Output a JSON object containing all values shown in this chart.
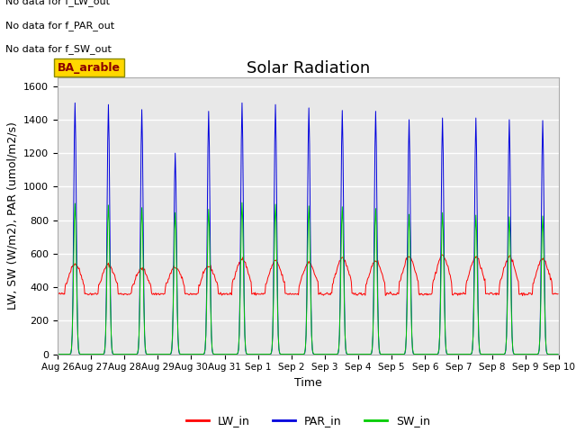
{
  "title": "Solar Radiation",
  "xlabel": "Time",
  "ylabel": "LW, SW (W/m2), PAR (umol/m2/s)",
  "ylim": [
    0,
    1650
  ],
  "yticks": [
    0,
    200,
    400,
    600,
    800,
    1000,
    1200,
    1400,
    1600
  ],
  "n_days": 15,
  "par_day_peaks": [
    1500,
    1490,
    1460,
    1200,
    1450,
    1500,
    1490,
    1470,
    1455,
    1450,
    1400,
    1410,
    1410,
    1400,
    1395
  ],
  "sw_day_peaks": [
    900,
    890,
    875,
    845,
    865,
    905,
    895,
    885,
    880,
    870,
    835,
    845,
    830,
    820,
    825
  ],
  "lw_day_peaks": [
    540,
    535,
    510,
    520,
    525,
    570,
    555,
    545,
    575,
    560,
    585,
    590,
    580,
    580,
    570
  ],
  "lw_night": 360,
  "legend_labels": [
    "LW_in",
    "PAR_in",
    "SW_in"
  ],
  "legend_colors": [
    "#ff0000",
    "#0000dd",
    "#00cc00"
  ],
  "no_data_text": [
    "No data for f_LW_out",
    "No data for f_PAR_out",
    "No data for f_SW_out"
  ],
  "ba_arable_text": "BA_arable",
  "plot_bg_color": "#e8e8e8",
  "fig_bg_color": "#ffffff",
  "grid_color": "#ffffff",
  "title_fontsize": 13,
  "axis_fontsize": 9,
  "tick_fontsize": 8,
  "day_labels": [
    "Aug 26",
    "Aug 27",
    "Aug 28",
    "Aug 29",
    "Aug 30",
    "Aug 31",
    "Sep 1",
    "Sep 2",
    "Sep 3",
    "Sep 4",
    "Sep 5",
    "Sep 6",
    "Sep 7",
    "Sep 8",
    "Sep 9",
    "Sep 10"
  ]
}
